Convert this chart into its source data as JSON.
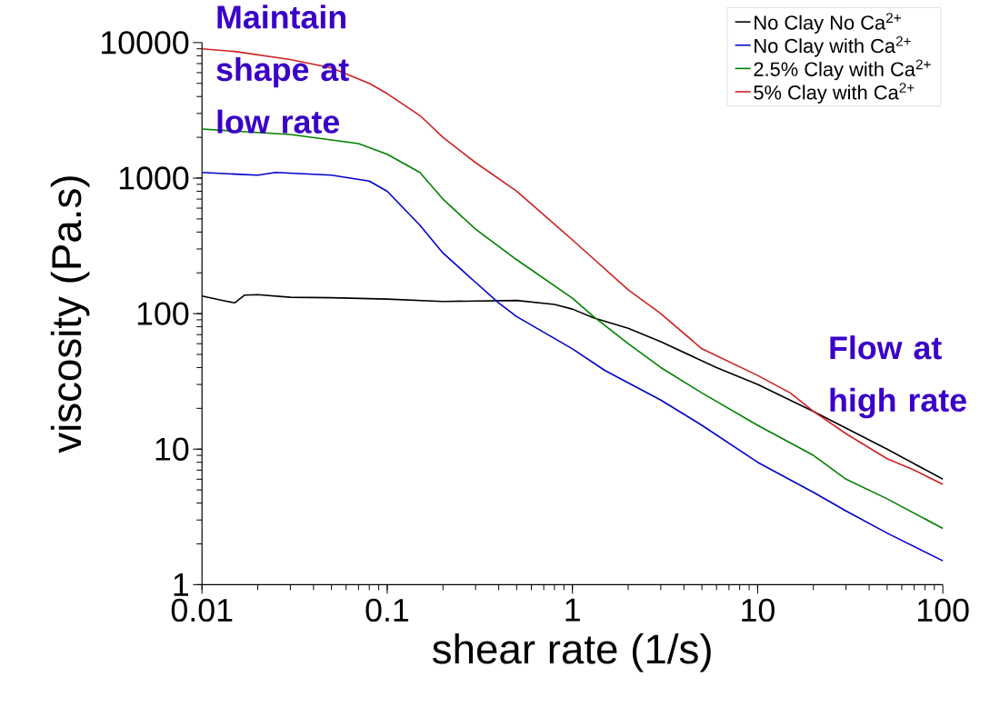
{
  "chart_data": {
    "type": "line",
    "xlabel": "shear rate (1/s)",
    "ylabel": "viscosity (Pa.s)",
    "log": "xy",
    "xlim": [
      0.01,
      100
    ],
    "ylim": [
      1,
      10000
    ],
    "xticks": [
      0.01,
      0.1,
      1,
      10,
      100
    ],
    "yticks": [
      1,
      10,
      100,
      1000,
      10000
    ],
    "grid": false,
    "legend": "top right",
    "marker": "none",
    "line_style": "solid",
    "annotations": [
      "Maintain shape at low rate",
      "Flow  at high rate"
    ],
    "series": [
      {
        "name": "No Clay No Ca$^{2+}$",
        "color": "#000000",
        "x": [
          0.01,
          0.013,
          0.015,
          0.017,
          0.02,
          0.03,
          0.05,
          0.1,
          0.2,
          0.5,
          0.8,
          1,
          1.3,
          2,
          3,
          6,
          10,
          20,
          50,
          100
        ],
        "values": [
          135,
          125,
          120,
          137,
          138,
          132,
          131,
          128,
          123,
          125,
          117,
          108,
          93,
          78,
          62,
          40,
          30,
          19,
          10,
          6
        ]
      },
      {
        "name": "No Clay with Ca$^{2+}$",
        "color": "#0000cc",
        "x": [
          0.01,
          0.02,
          0.025,
          0.05,
          0.08,
          0.1,
          0.15,
          0.2,
          0.3,
          0.4,
          0.5,
          1,
          1.5,
          3,
          5,
          10,
          20,
          30,
          50,
          100
        ],
        "values": [
          1100,
          1050,
          1100,
          1050,
          950,
          800,
          450,
          280,
          170,
          120,
          95,
          55,
          38,
          23,
          15,
          8,
          4.8,
          3.5,
          2.4,
          1.5
        ]
      },
      {
        "name": "2.5% Clay with Ca$^{2+}$",
        "color": "#008000",
        "x": [
          0.01,
          0.03,
          0.07,
          0.1,
          0.15,
          0.2,
          0.3,
          0.5,
          1,
          1.3,
          2,
          3,
          5,
          10,
          20,
          30,
          50,
          100
        ],
        "values": [
          2300,
          2100,
          1800,
          1500,
          1100,
          700,
          420,
          250,
          130,
          95,
          60,
          40,
          26,
          15,
          9,
          6,
          4.3,
          2.6
        ]
      },
      {
        "name": "5% Clay with Ca$^{2+}$",
        "color": "#d02020",
        "x": [
          0.01,
          0.015,
          0.03,
          0.05,
          0.08,
          0.1,
          0.15,
          0.2,
          0.3,
          0.5,
          1,
          2,
          3,
          5,
          10,
          15,
          20,
          30,
          50,
          70,
          100
        ],
        "values": [
          9000,
          8600,
          7500,
          6500,
          5000,
          4200,
          2900,
          2000,
          1300,
          800,
          350,
          150,
          100,
          55,
          35,
          26,
          19,
          13,
          8.5,
          7,
          5.5
        ]
      }
    ]
  }
}
